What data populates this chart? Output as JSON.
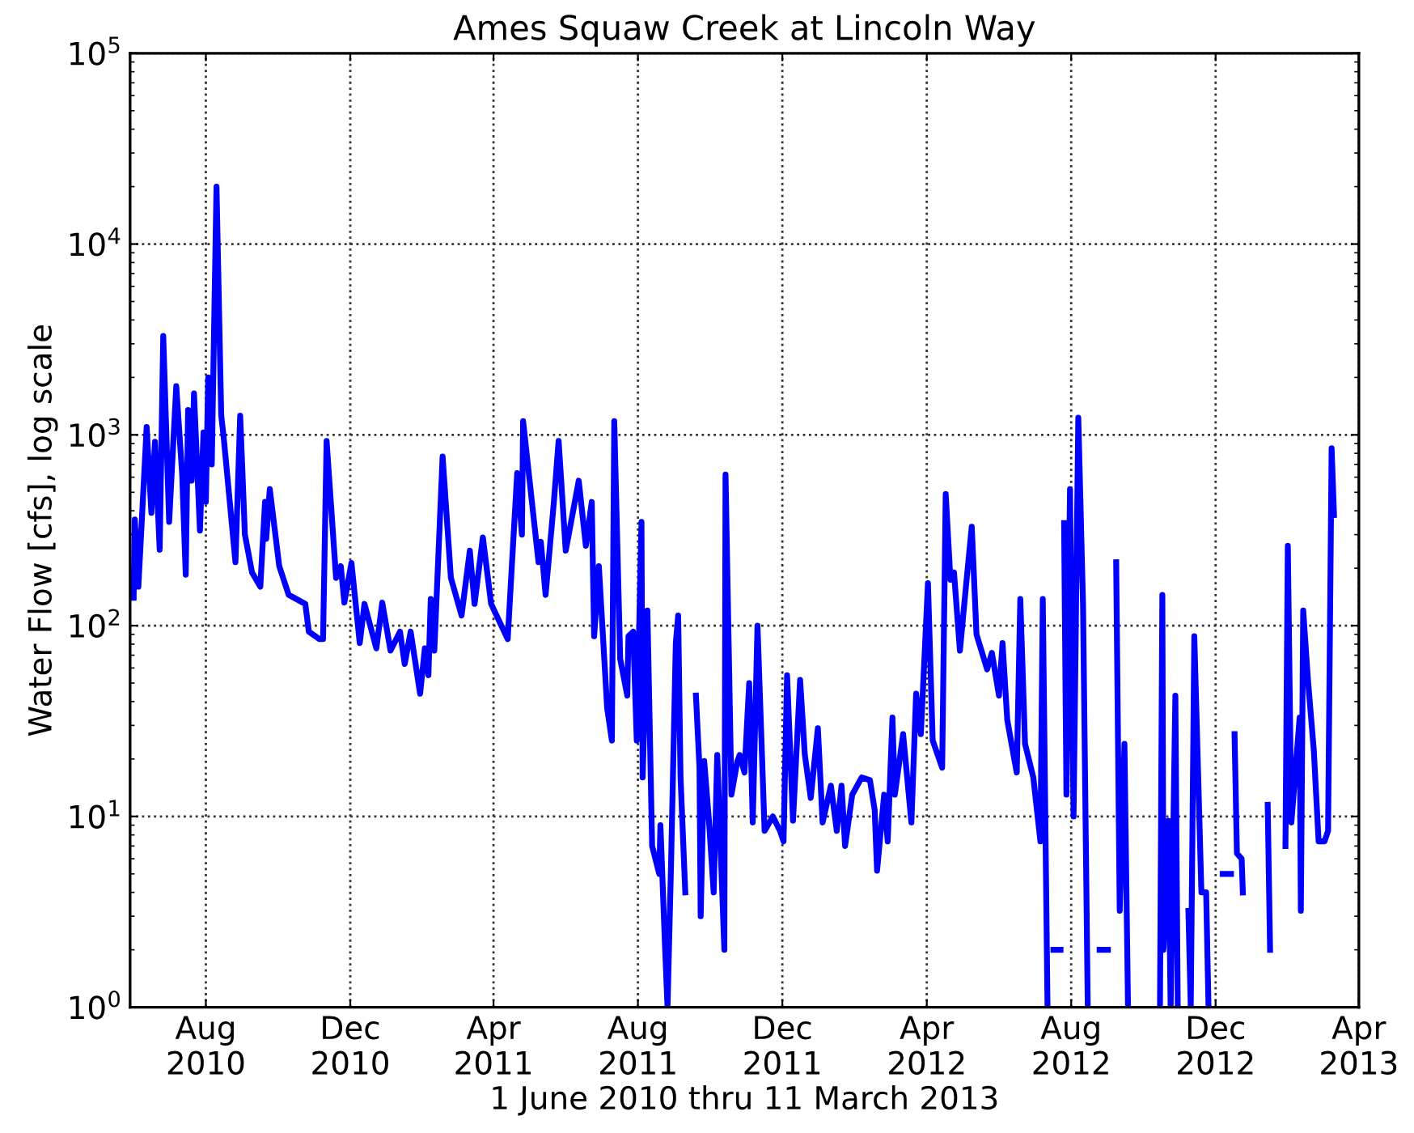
{
  "chart_data": {
    "type": "line",
    "title": "Ames Squaw Creek at Lincoln Way",
    "xlabel": "1 June 2010 thru 11 March 2013",
    "ylabel": "Water Flow [cfs], log scale",
    "log": "y",
    "grid": true,
    "marker": "none",
    "line_style": "solid",
    "xlim": [
      "2010-05-29",
      "2013-04-01"
    ],
    "ylim": [
      1,
      100000
    ],
    "xticks": [
      {
        "value": "2010-08-01",
        "label": "Aug\n2010"
      },
      {
        "value": "2010-12-01",
        "label": "Dec\n2010"
      },
      {
        "value": "2011-04-01",
        "label": "Apr\n2011"
      },
      {
        "value": "2011-08-01",
        "label": "Aug\n2011"
      },
      {
        "value": "2011-12-01",
        "label": "Dec\n2011"
      },
      {
        "value": "2012-04-01",
        "label": "Apr\n2012"
      },
      {
        "value": "2012-08-01",
        "label": "Aug\n2012"
      },
      {
        "value": "2012-12-01",
        "label": "Dec\n2012"
      },
      {
        "value": "2013-04-01",
        "label": "Apr\n2013"
      }
    ],
    "yticks": [
      {
        "value": 1,
        "label": "10$^{0}$"
      },
      {
        "value": 10,
        "label": "10$^{1}$"
      },
      {
        "value": 100,
        "label": "10$^{2}$"
      },
      {
        "value": 1000,
        "label": "10$^{3}$"
      },
      {
        "value": 10000,
        "label": "10$^{4}$"
      },
      {
        "value": 100000,
        "label": "10$^{5}$"
      }
    ],
    "series": [
      {
        "color": "#0000ff",
        "x": [
          "2010-06-01",
          "2010-06-02",
          "2010-06-05",
          "2010-06-12",
          "2010-06-16",
          "2010-06-19",
          "2010-06-23",
          "2010-06-26",
          "2010-07-01",
          "2010-07-07",
          "2010-07-12",
          "2010-07-15",
          "2010-07-17",
          "2010-07-20",
          "2010-07-22",
          "2010-07-27",
          "2010-07-30",
          "2010-08-01",
          "2010-08-03",
          "2010-08-06",
          "2010-08-10",
          "2010-08-14",
          "2010-08-16",
          "2010-08-26",
          "2010-08-30",
          "2010-09-03",
          "2010-09-09",
          "2010-09-16",
          "2010-09-20",
          "2010-09-21",
          "2010-09-24",
          "2010-10-02",
          "2010-10-10",
          "2010-10-24",
          "2010-10-27",
          "2010-11-05",
          "2010-11-08",
          "2010-11-11",
          "2010-11-19",
          "2010-11-23",
          "2010-11-26",
          "2010-12-02",
          "2010-12-09",
          "2010-12-13",
          "2010-12-23",
          "2010-12-28",
          "2011-01-04",
          "2011-01-12",
          "2011-01-16",
          "2011-01-21",
          "2011-01-29",
          "2011-02-02",
          "2011-02-05",
          "2011-02-07",
          "2011-02-10",
          "2011-02-17",
          "2011-02-24",
          "2011-03-05",
          "2011-03-12",
          "2011-03-16",
          "2011-03-23",
          "2011-03-30",
          "2011-04-13",
          "2011-04-17",
          "2011-04-21",
          "2011-04-25",
          "2011-04-26",
          "2011-05-09",
          "2011-05-11",
          "2011-05-15",
          "2011-05-22",
          "2011-05-26",
          "2011-06-01",
          "2011-06-12",
          "2011-06-18",
          "2011-06-23",
          "2011-06-25",
          "2011-06-29",
          "2011-07-06",
          "2011-07-10",
          "2011-07-12",
          "2011-07-17",
          "2011-07-23",
          "2011-07-24",
          "2011-07-28",
          "2011-07-31",
          "2011-08-04",
          "2011-08-05",
          "2011-08-09",
          "2011-08-13",
          "2011-08-19",
          "2011-08-20",
          "2011-08-24",
          "2011-08-26",
          "2011-08-29",
          "2011-09-02",
          "2011-09-04",
          "2011-09-06",
          "2011-09-10",
          "2011-09-12",
          "2011-09-19",
          "2011-09-22",
          "2011-09-23",
          "2011-09-26",
          "2011-09-30",
          "2011-10-04",
          "2011-10-07",
          "2011-10-13",
          "2011-10-14",
          "2011-10-19",
          "2011-10-24",
          "2011-10-26",
          "2011-10-30",
          "2011-11-03",
          "2011-11-06",
          "2011-11-10",
          "2011-11-16",
          "2011-11-23",
          "2011-11-29",
          "2011-12-02",
          "2011-12-05",
          "2011-12-10",
          "2011-12-16",
          "2011-12-20",
          "2011-12-25",
          "2011-12-31",
          "2012-01-04",
          "2012-01-11",
          "2012-01-16",
          "2012-01-20",
          "2012-01-23",
          "2012-01-29",
          "2012-02-06",
          "2012-02-13",
          "2012-02-17",
          "2012-02-19",
          "2012-02-25",
          "2012-02-28",
          "2012-03-03",
          "2012-03-05",
          "2012-03-12",
          "2012-03-19",
          "2012-03-23",
          "2012-03-27",
          "2012-04-02",
          "2012-04-06",
          "2012-04-14",
          "2012-04-17",
          "2012-04-21",
          "2012-04-24",
          "2012-04-29",
          "2012-05-04",
          "2012-05-09",
          "2012-05-13",
          "2012-05-22",
          "2012-05-26",
          "2012-06-01",
          "2012-06-04",
          "2012-06-08",
          "2012-06-16",
          "2012-06-19",
          "2012-06-23",
          "2012-06-30",
          "2012-07-06",
          "2012-07-08",
          "2012-07-12",
          "2012-07-14",
          "2012-07-17",
          "2012-07-23",
          "2012-07-24",
          "2012-07-26",
          "2012-07-28",
          "2012-07-31",
          "2012-08-03",
          "2012-08-07",
          "2012-08-11",
          "2012-08-15",
          "2012-08-18",
          "2012-08-25",
          "2012-09-01",
          "2012-09-02",
          "2012-09-08",
          "2012-09-11",
          "2012-09-15",
          "2012-09-18",
          "2012-09-28",
          "2012-10-15",
          "2012-10-17",
          "2012-10-18",
          "2012-10-22",
          "2012-10-24",
          "2012-10-28",
          "2012-10-30",
          "2012-11-01",
          "2012-11-08",
          "2012-11-10",
          "2012-11-13",
          "2012-11-19",
          "2012-11-23",
          "2012-11-25",
          "2012-11-28",
          "2012-12-07",
          "2012-12-14",
          "2012-12-15",
          "2012-12-17",
          "2012-12-19",
          "2012-12-23",
          "2012-12-24",
          "2012-12-30",
          "2013-01-14",
          "2013-01-16",
          "2013-01-20",
          "2013-01-29",
          "2013-01-31",
          "2013-02-03",
          "2013-02-10",
          "2013-02-11",
          "2013-02-13",
          "2013-02-17",
          "2013-02-22",
          "2013-02-26",
          "2013-03-03",
          "2013-03-06",
          "2013-03-09",
          "2013-03-11"
        ],
        "values": [
          140,
          360,
          160,
          1100,
          390,
          920,
          250,
          3300,
          350,
          1800,
          620,
          185,
          1350,
          575,
          1650,
          315,
          1030,
          445,
          2000,
          700,
          20000,
          1260,
          980,
          215,
          1260,
          300,
          190,
          160,
          445,
          285,
          520,
          205,
          145,
          130,
          93,
          85,
          85,
          930,
          178,
          205,
          132,
          213,
          81,
          130,
          76,
          132,
          74,
          93,
          63,
          93,
          44,
          76,
          55,
          138,
          74,
          770,
          178,
          113,
          247,
          130,
          290,
          130,
          85,
          234,
          630,
          300,
          1180,
          215,
          275,
          145,
          445,
          930,
          247,
          575,
          262,
          445,
          88,
          205,
          37,
          25,
          1180,
          67,
          43,
          88,
          93,
          25,
          350,
          16,
          120,
          7,
          5,
          9,
          2,
          1,
          5.7,
          81,
          113,
          16,
          4,
          null,
          43,
          18,
          3,
          19.5,
          9.5,
          4,
          21,
          2,
          620,
          13,
          19.5,
          21,
          17,
          50,
          9.3,
          100,
          8.4,
          10,
          8.4,
          7.4,
          55,
          9.5,
          52,
          21,
          12.5,
          29,
          9.3,
          14.5,
          8.4,
          14.5,
          7,
          13,
          16,
          15.5,
          10.8,
          5.2,
          13,
          7.4,
          33,
          13,
          27,
          9.3,
          44,
          27,
          167,
          25,
          18,
          490,
          174,
          190,
          74,
          158,
          330,
          90,
          59,
          72,
          43,
          81,
          32,
          17,
          138,
          24,
          16,
          7.4,
          138,
          1,
          null,
          2,
          2,
          null,
          345,
          13,
          520,
          10,
          1230,
          130,
          1,
          null,
          2,
          2,
          null,
          215,
          3.2,
          24,
          1,
          null,
          1,
          145,
          2,
          9.5,
          1,
          43,
          1,
          null,
          3.2,
          1,
          88,
          4,
          4,
          1,
          null,
          5,
          5,
          null,
          27,
          6.4,
          6,
          4,
          null,
          11.5,
          2,
          null,
          7,
          262,
          9.3,
          33,
          3.2,
          120,
          52,
          22,
          7.4,
          7.4,
          8.4,
          850,
          380
        ]
      }
    ]
  }
}
